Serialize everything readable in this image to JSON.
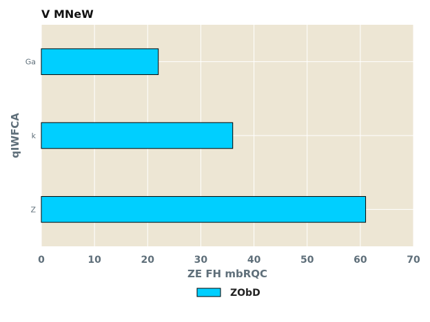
{
  "chart_data": {
    "type": "bar",
    "orientation": "horizontal",
    "title": "V MNeW",
    "xlabel": "ZE FH mbRQC",
    "ylabel": "qIWFCA",
    "categories": [
      "Ga",
      "k",
      "Z"
    ],
    "series": [
      {
        "name": "ZObD",
        "values": [
          22,
          36,
          61
        ]
      }
    ],
    "xlim": [
      0,
      70
    ],
    "xticks": [
      0,
      10,
      20,
      30,
      40,
      50,
      60,
      70
    ],
    "grid": true,
    "legend_position": "bottom-center",
    "colors": {
      "bar": "#00cfff",
      "bar_edge": "#000000",
      "plot_background": "#ede6d4",
      "grid": "#ffffff"
    }
  }
}
